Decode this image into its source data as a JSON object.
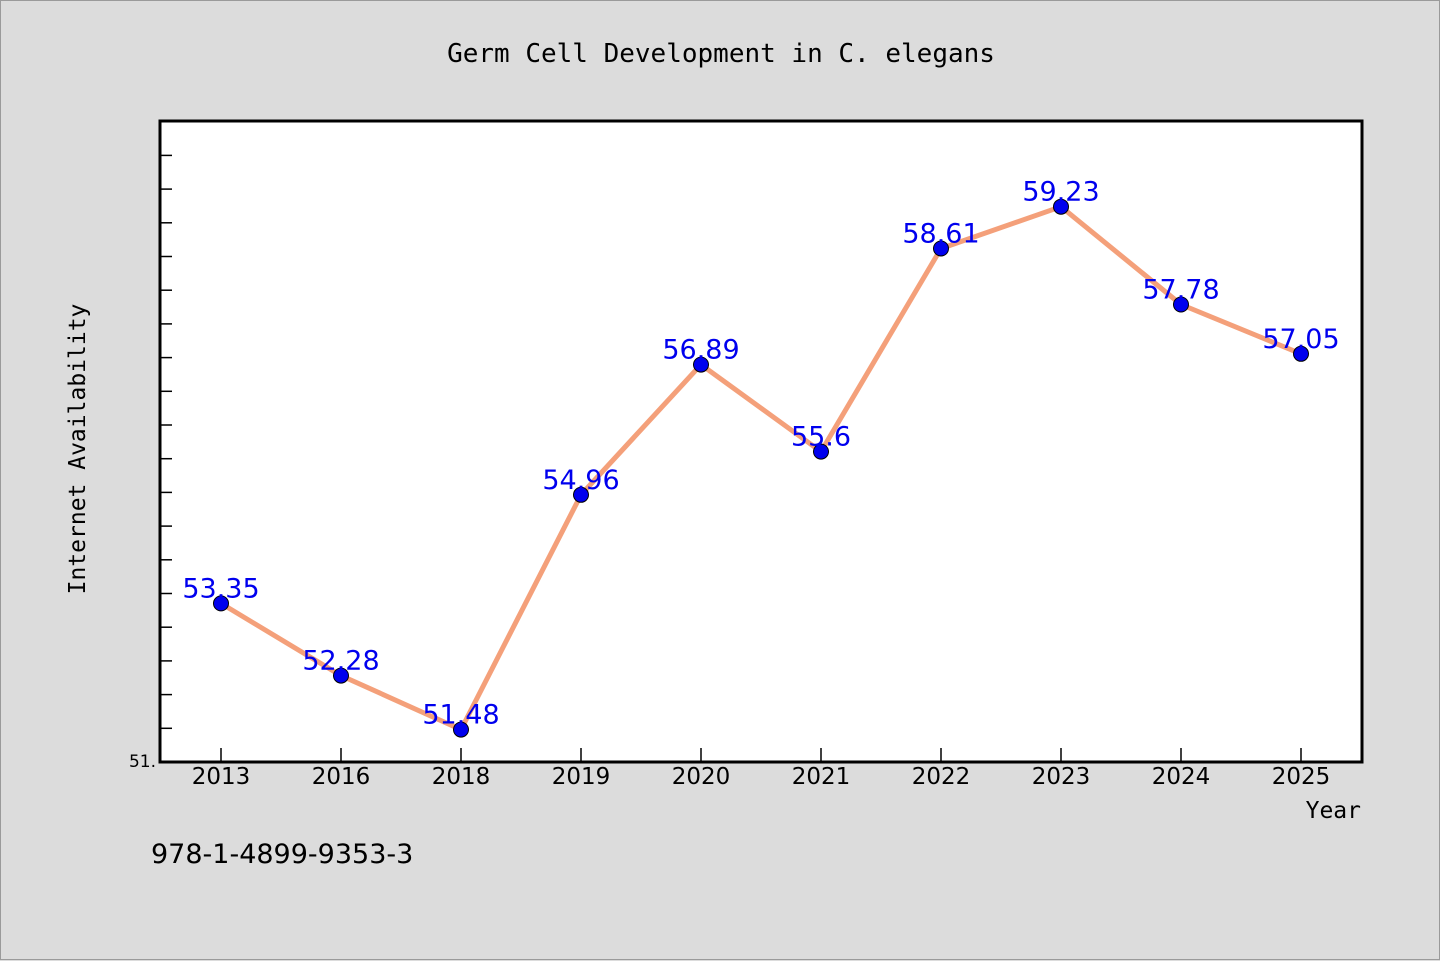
{
  "chart_data": {
    "type": "line",
    "title": "Germ Cell Development in C. elegans",
    "xlabel": "Year",
    "ylabel": "Internet Availability",
    "categories": [
      "2013",
      "2016",
      "2018",
      "2019",
      "2020",
      "2021",
      "2022",
      "2023",
      "2024",
      "2025"
    ],
    "series": [
      {
        "values": [
          53.35,
          52.28,
          51.48,
          54.96,
          56.89,
          55.6,
          58.61,
          59.23,
          57.78,
          57.05
        ],
        "labels": [
          "53.35",
          "52.28",
          "51.48",
          "54.96",
          "56.89",
          "55.6",
          "58.61",
          "59.23",
          "57.78",
          "57.05"
        ],
        "line_color": "#f4a07a",
        "marker_color": "#0000ee"
      }
    ],
    "ylim": [
      51.0,
      60.5
    ],
    "y_tick_labels": [
      "51."
    ],
    "grid": false,
    "label_color": "#0000ee"
  },
  "footer_text": "978-1-4899-9353-3"
}
